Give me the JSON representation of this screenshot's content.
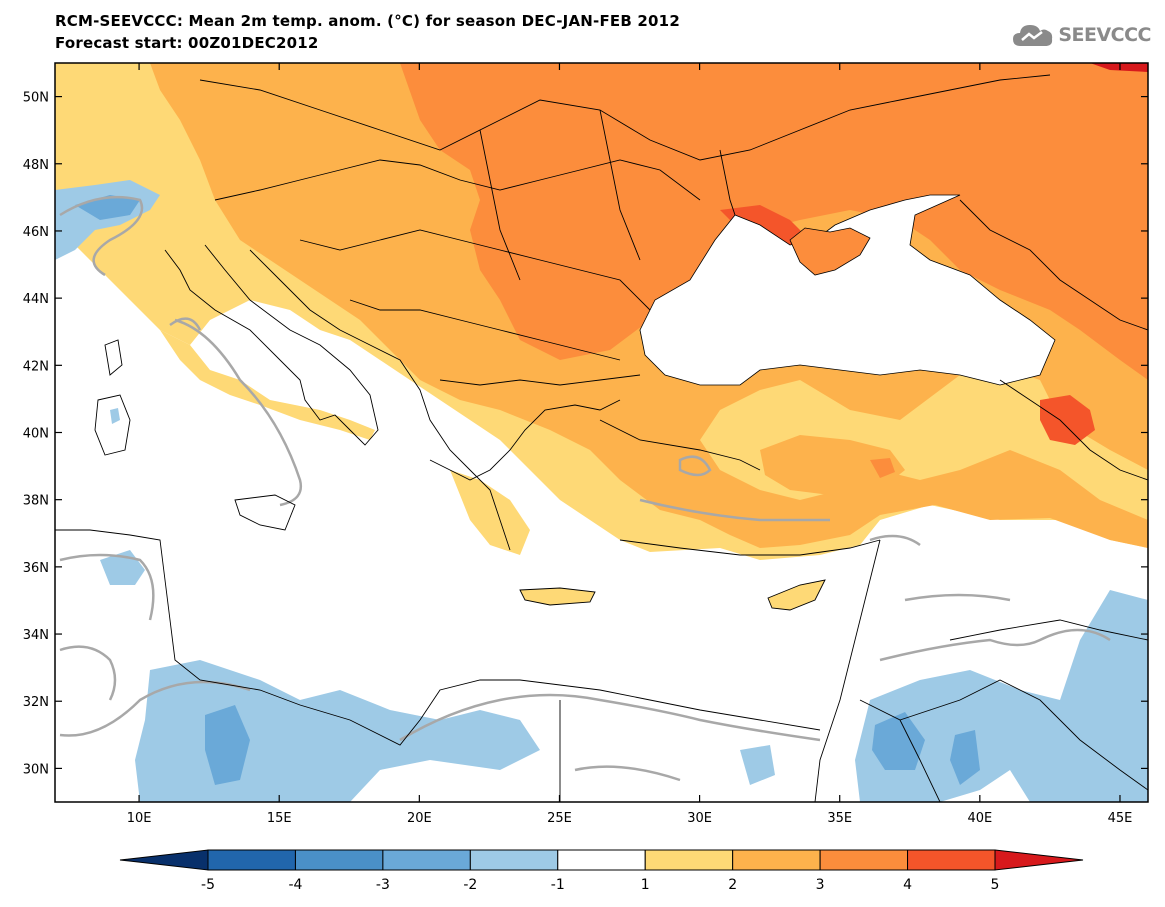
{
  "header": {
    "title_line1": "RCM-SEEVCCC: Mean 2m temp. anom. (°C) for season DEC-JAN-FEB 2012",
    "title_line2": "Forecast start: 00Z01DEC2012",
    "logo_text": "SEEVCCC"
  },
  "map": {
    "lat_range": [
      29,
      51
    ],
    "lon_range": [
      7,
      46
    ],
    "lat_ticks": [
      {
        "value": 30,
        "label": "30N"
      },
      {
        "value": 32,
        "label": "32N"
      },
      {
        "value": 34,
        "label": "34N"
      },
      {
        "value": 36,
        "label": "36N"
      },
      {
        "value": 38,
        "label": "38N"
      },
      {
        "value": 40,
        "label": "40N"
      },
      {
        "value": 42,
        "label": "42N"
      },
      {
        "value": 44,
        "label": "44N"
      },
      {
        "value": 46,
        "label": "46N"
      },
      {
        "value": 48,
        "label": "48N"
      },
      {
        "value": 50,
        "label": "50N"
      }
    ],
    "lon_ticks": [
      {
        "value": 10,
        "label": "10E"
      },
      {
        "value": 15,
        "label": "15E"
      },
      {
        "value": 20,
        "label": "20E"
      },
      {
        "value": 25,
        "label": "25E"
      },
      {
        "value": 30,
        "label": "30E"
      },
      {
        "value": 35,
        "label": "35E"
      },
      {
        "value": 40,
        "label": "40E"
      },
      {
        "value": 45,
        "label": "45E"
      }
    ]
  },
  "colorbar": {
    "boundaries": [
      "-5",
      "-4",
      "-3",
      "-2",
      "-1",
      "1",
      "2",
      "3",
      "4",
      "5"
    ],
    "colors": [
      "#08306b",
      "#2166ac",
      "#4a90c8",
      "#6aa9d8",
      "#9ecae6",
      "#ffffff",
      "#fed976",
      "#fdb24c",
      "#fc8d3c",
      "#f4552a",
      "#d7191c"
    ]
  },
  "palette": {
    "warm_1_2": "#fed976",
    "warm_2_3": "#fdb24c",
    "warm_3_4": "#fc8d3c",
    "warm_4_5": "#f4552a",
    "warm_5": "#d7191c",
    "cool_1_2": "#9ecae6",
    "cool_2_3": "#6aa9d8",
    "contour": "#a8a8a8",
    "coast": "#000000"
  }
}
